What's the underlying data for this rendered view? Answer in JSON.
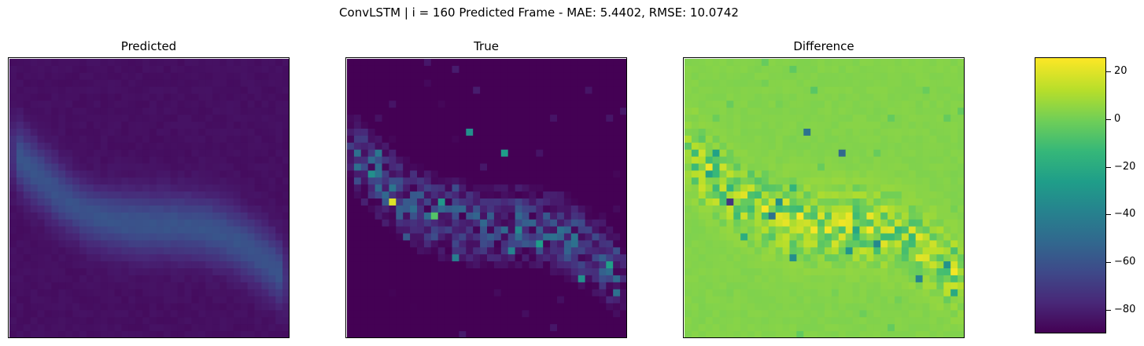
{
  "figure": {
    "title": "ConvLSTM | i = 160 Predicted Frame - MAE: 5.4402, RMSE: 10.0742"
  },
  "chart_data": [
    {
      "type": "heatmap",
      "title": "Predicted",
      "grid_size": [
        40,
        40
      ],
      "colormap": "viridis",
      "value_range_approx": [
        0,
        30
      ],
      "axes_ticks_visible": false,
      "pattern": "smooth diffuse band running from upper-left to lower-right, values ~10-25"
    },
    {
      "type": "heatmap",
      "title": "True",
      "grid_size": [
        40,
        40
      ],
      "colormap": "viridis",
      "value_range_approx": [
        0,
        100
      ],
      "axes_ticks_visible": false,
      "pattern": "sparse speckled band running from upper-left to lower-right with bright hotspots"
    },
    {
      "type": "heatmap",
      "title": "Difference",
      "grid_size": [
        40,
        40
      ],
      "colormap": "viridis",
      "value_range": [
        -90,
        26
      ],
      "axes_ticks_visible": false,
      "pattern": "mostly near 0 (green), positive yellow patches and negative dark spots along the diagonal band"
    }
  ],
  "colorbar": {
    "colormap": "viridis",
    "min": -90,
    "max": 26,
    "ticks": [
      20,
      0,
      -20,
      -40,
      -60,
      -80
    ],
    "tick_labels": [
      "20",
      "0",
      "−20",
      "−40",
      "−60",
      "−80"
    ]
  },
  "colors": {
    "viridis": [
      "#440154",
      "#482878",
      "#3e4989",
      "#31688e",
      "#26828e",
      "#1f9e89",
      "#35b779",
      "#6ece58",
      "#b5de2b",
      "#fde725"
    ]
  }
}
